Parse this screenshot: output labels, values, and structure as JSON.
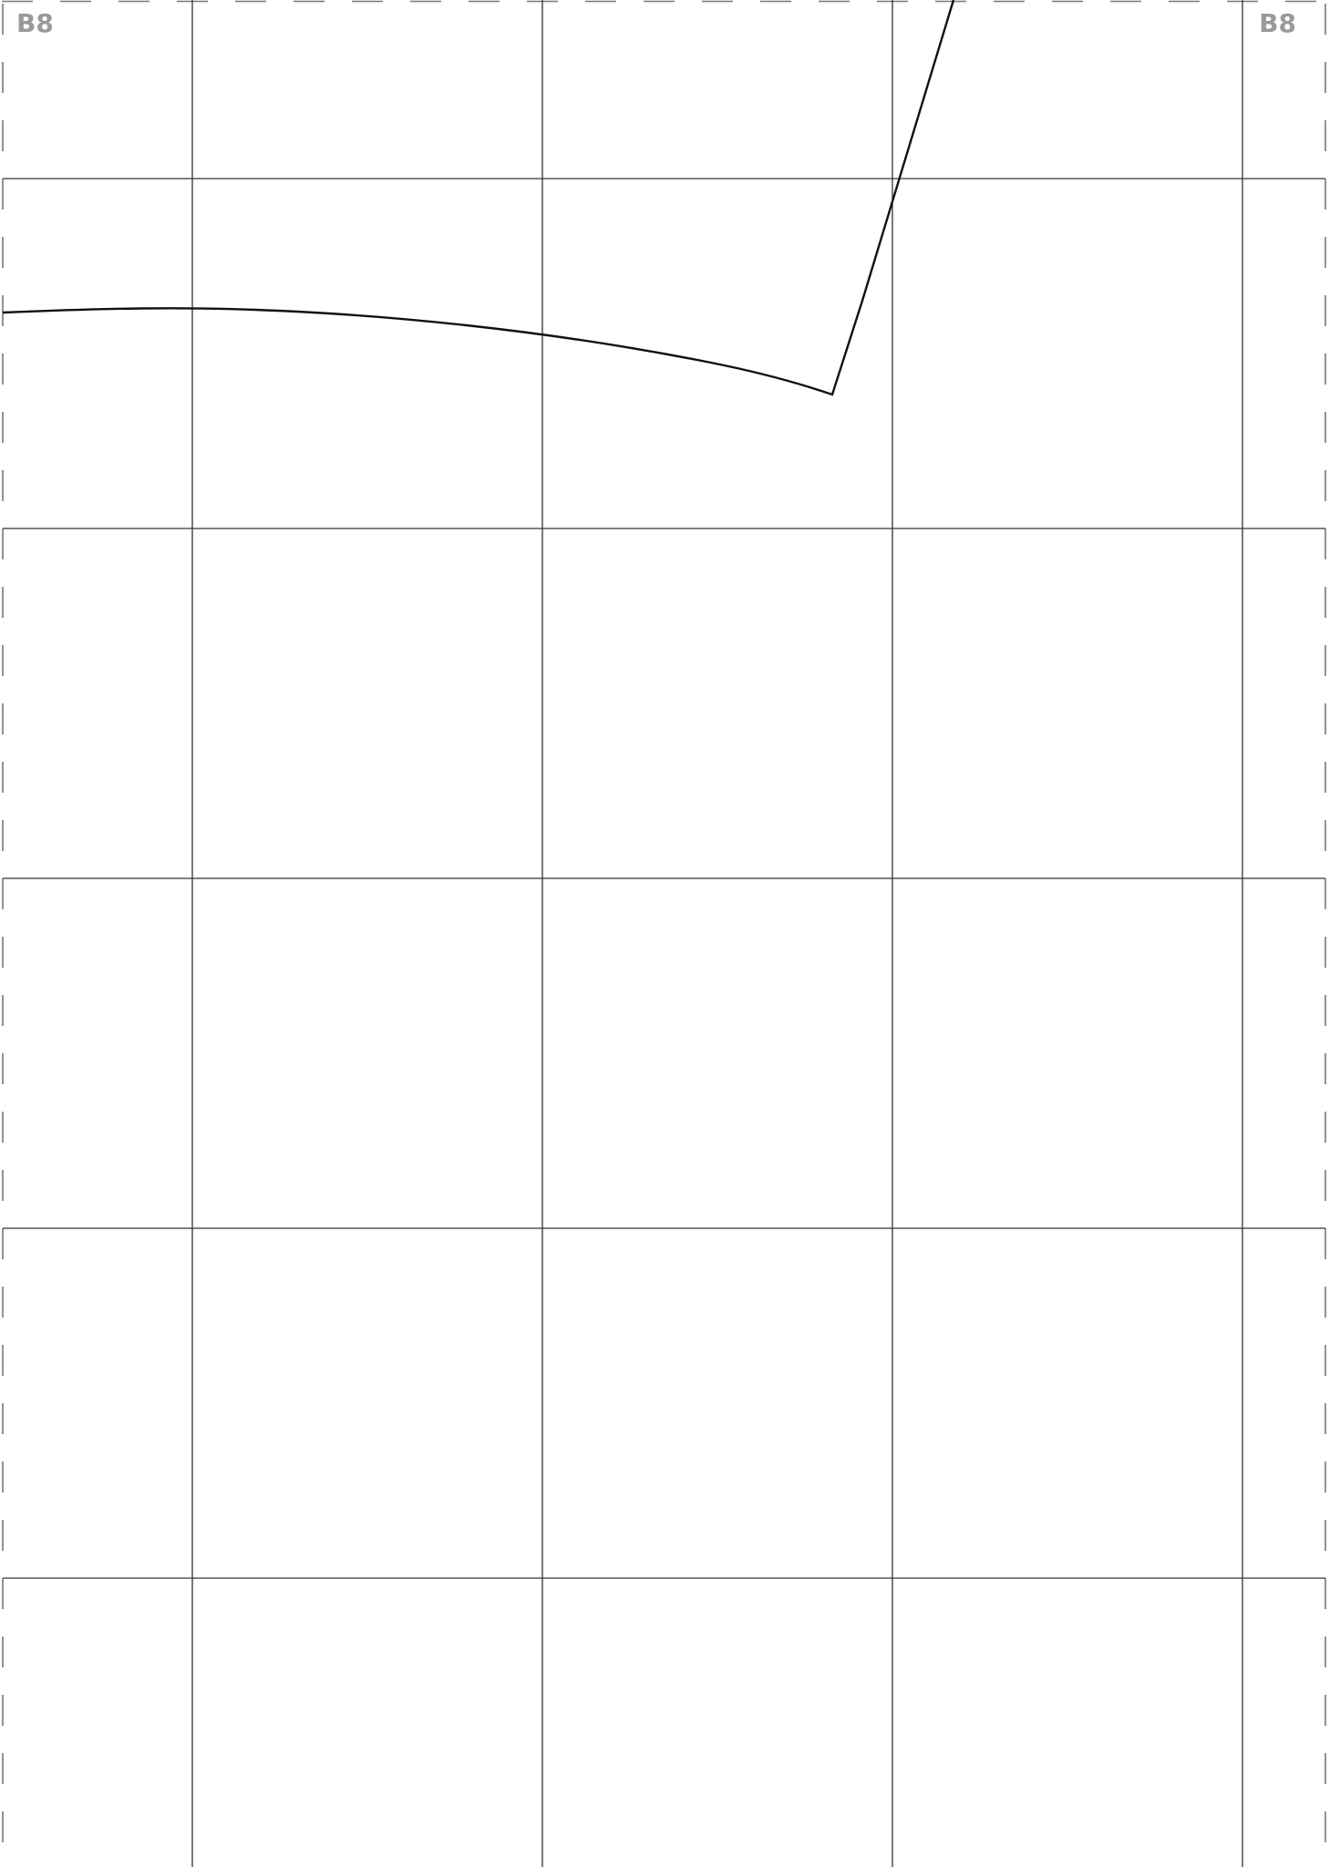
{
  "sheet": {
    "tile_label_left": "B8",
    "tile_label_right": "B8"
  },
  "colors": {
    "label": "#9a9a9a",
    "grid": "#333333",
    "pattern_line": "#111111",
    "trim_dash": "#777777",
    "background": "#ffffff"
  }
}
